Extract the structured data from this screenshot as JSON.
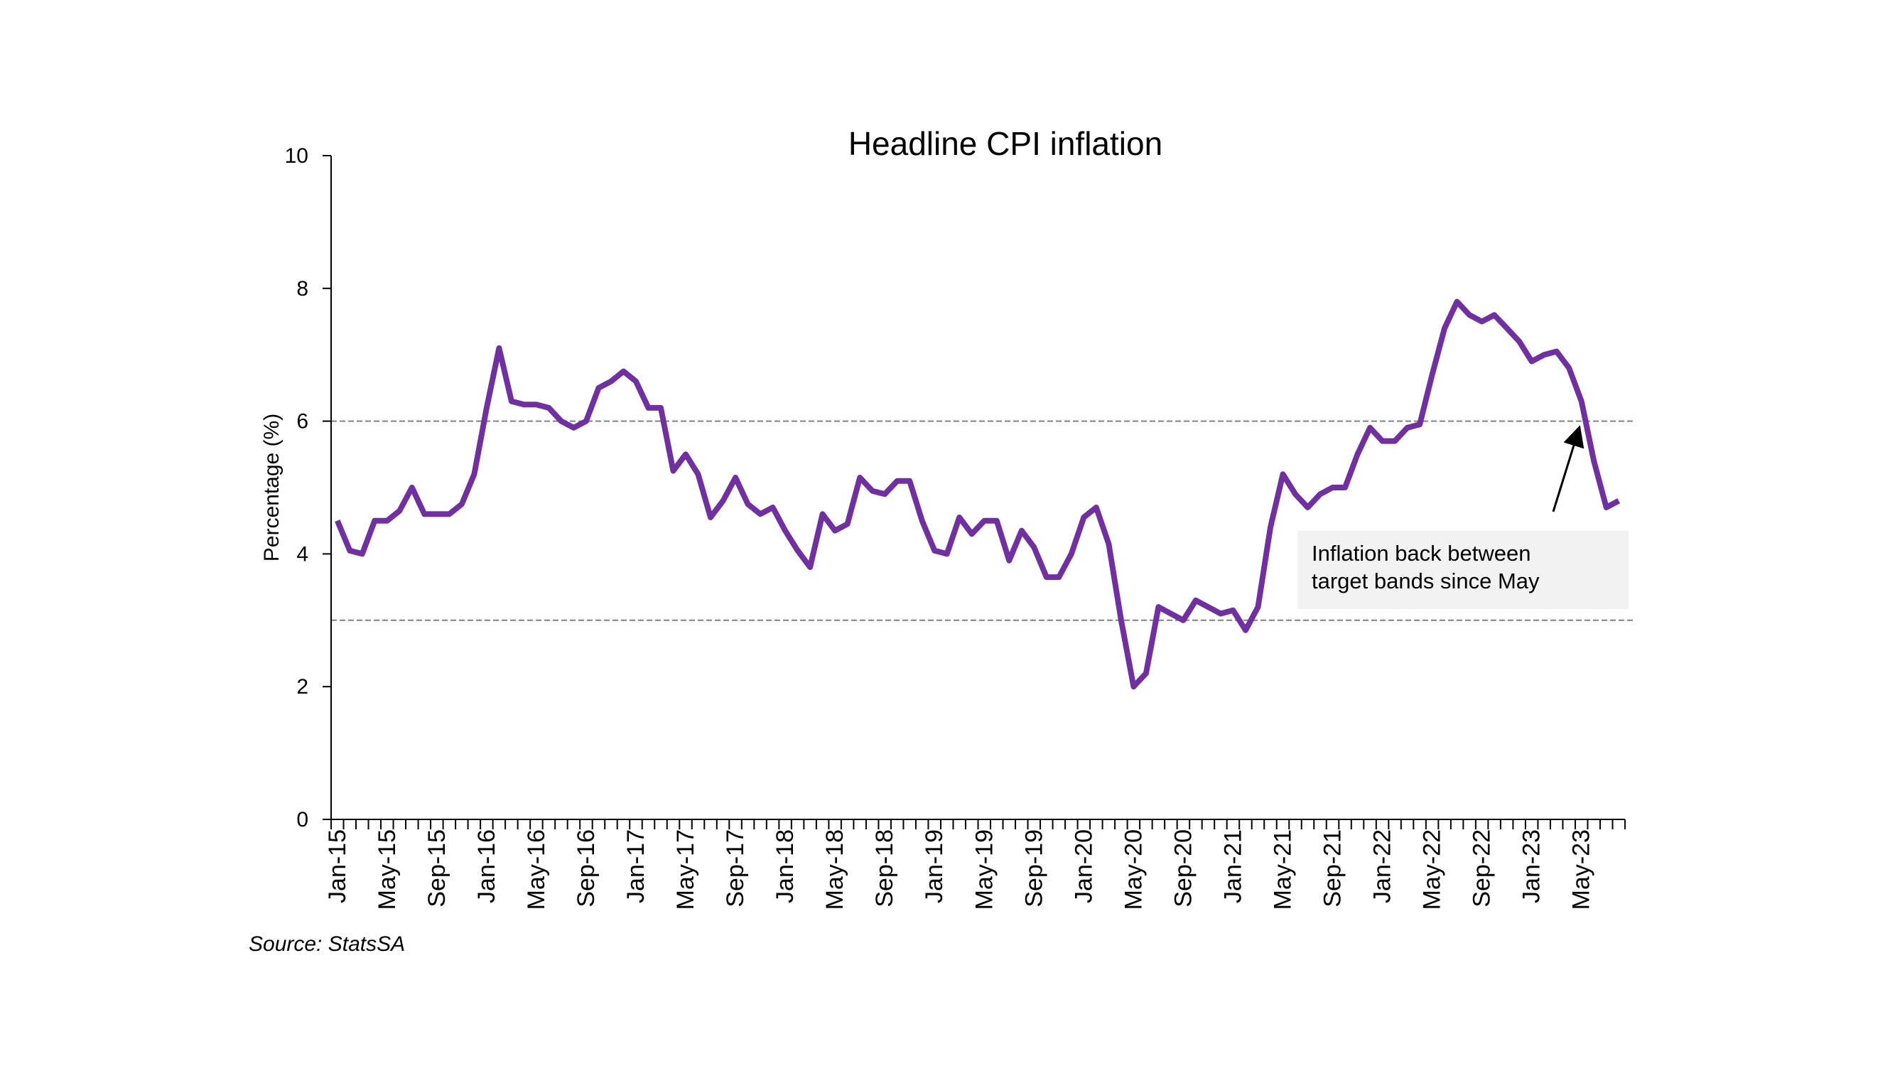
{
  "chart_data": {
    "type": "line",
    "title": "Headline CPI inflation",
    "ylabel": "Percentage (%)",
    "xlabel": "",
    "source": "Source: StatsSA",
    "ylim": [
      0,
      10
    ],
    "yticks": [
      0,
      2,
      4,
      6,
      8,
      10
    ],
    "grid": false,
    "legend": "none",
    "line_color": "#7030a0",
    "reference_lines": [
      {
        "value": 6,
        "style": "dashed",
        "color": "#808080"
      },
      {
        "value": 3,
        "style": "dashed",
        "color": "#808080"
      }
    ],
    "annotation": {
      "text_line1": "Inflation back between",
      "text_line2": "target bands since May",
      "box_color": "#f2f2f2"
    },
    "x_start": "Jan-15",
    "x_labels": [
      "Jan-15",
      "May-15",
      "Sep-15",
      "Jan-16",
      "May-16",
      "Sep-16",
      "Jan-17",
      "May-17",
      "Sep-17",
      "Jan-18",
      "May-18",
      "Sep-18",
      "Jan-19",
      "May-19",
      "Sep-19",
      "Jan-20",
      "May-20",
      "Sep-20",
      "Jan-21",
      "May-21",
      "Sep-21",
      "Jan-22",
      "May-22",
      "Sep-22",
      "Jan-23",
      "May-23"
    ],
    "values": [
      4.5,
      4.05,
      4.0,
      4.5,
      4.5,
      4.65,
      5.0,
      4.6,
      4.6,
      4.6,
      4.75,
      5.2,
      6.2,
      7.1,
      6.3,
      6.25,
      6.25,
      6.2,
      6.0,
      5.9,
      6.0,
      6.5,
      6.6,
      6.75,
      6.6,
      6.2,
      6.2,
      5.25,
      5.5,
      5.2,
      4.55,
      4.8,
      5.15,
      4.75,
      4.6,
      4.7,
      4.35,
      4.05,
      3.8,
      4.6,
      4.35,
      4.45,
      5.15,
      4.95,
      4.9,
      5.1,
      5.1,
      4.5,
      4.05,
      4.0,
      4.55,
      4.3,
      4.5,
      4.5,
      3.9,
      4.35,
      4.1,
      3.65,
      3.65,
      4.0,
      4.55,
      4.7,
      4.15,
      3.0,
      2.0,
      2.2,
      3.2,
      3.1,
      3.0,
      3.3,
      3.2,
      3.1,
      3.15,
      2.85,
      3.2,
      4.4,
      5.2,
      4.9,
      4.7,
      4.9,
      5.0,
      5.0,
      5.5,
      5.9,
      5.7,
      5.7,
      5.9,
      5.95,
      6.7,
      7.4,
      7.8,
      7.6,
      7.5,
      7.6,
      7.4,
      7.2,
      6.9,
      7.0,
      7.05,
      6.8,
      6.3,
      5.4,
      4.7,
      4.8
    ]
  }
}
